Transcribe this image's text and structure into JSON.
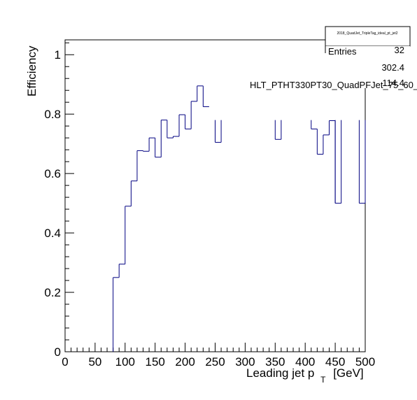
{
  "chart_data": {
    "type": "line",
    "step": true,
    "xlabel_main": "Leading jet p",
    "xlabel_sub": "T",
    "xlabel_unit": "[GeV]",
    "ylabel": "Efficiency",
    "xlim": [
      0,
      500
    ],
    "ylim": [
      0,
      1.05
    ],
    "x_ticks": [
      "0",
      "50",
      "100",
      "150",
      "200",
      "250",
      "300",
      "350",
      "400",
      "450",
      "500"
    ],
    "y_ticks": [
      "0",
      "0.2",
      "0.4",
      "0.6",
      "0.8",
      "1"
    ],
    "line_color": "#000080",
    "bin_width": 10,
    "bins": [
      {
        "x0": 80,
        "y": 0.25
      },
      {
        "x0": 90,
        "y": 0.295
      },
      {
        "x0": 100,
        "y": 0.49
      },
      {
        "x0": 110,
        "y": 0.575
      },
      {
        "x0": 120,
        "y": 0.677
      },
      {
        "x0": 130,
        "y": 0.675
      },
      {
        "x0": 140,
        "y": 0.72
      },
      {
        "x0": 150,
        "y": 0.655
      },
      {
        "x0": 160,
        "y": 0.78
      },
      {
        "x0": 170,
        "y": 0.72
      },
      {
        "x0": 180,
        "y": 0.725
      },
      {
        "x0": 190,
        "y": 0.798
      },
      {
        "x0": 200,
        "y": 0.75
      },
      {
        "x0": 210,
        "y": 0.843
      },
      {
        "x0": 220,
        "y": 0.895
      },
      {
        "x0": 230,
        "y": 0.825
      },
      {
        "x0": 250,
        "y": 0.705
      },
      {
        "x0": 350,
        "y": 0.715
      },
      {
        "x0": 410,
        "y": 0.75
      },
      {
        "x0": 420,
        "y": 0.665
      },
      {
        "x0": 430,
        "y": 0.73
      },
      {
        "x0": 440,
        "y": 0.778
      },
      {
        "x0": 450,
        "y": 0.5
      },
      {
        "x0": 490,
        "y": 0.5
      }
    ],
    "clipped_segments": [
      {
        "x0": 260,
        "x1": 260,
        "y0": 0.705,
        "y1": 0.78
      },
      {
        "x0": 250,
        "x1": 250,
        "y0": 0.705,
        "y1": 0.78
      },
      {
        "x0": 350,
        "x1": 350,
        "y0": 0.715,
        "y1": 0.78
      },
      {
        "x0": 360,
        "x1": 360,
        "y0": 0.715,
        "y1": 0.78
      },
      {
        "x0": 410,
        "x1": 410,
        "y0": 0.75,
        "y1": 0.78
      },
      {
        "x0": 450,
        "x1": 450,
        "y0": 0.5,
        "y1": 0.78
      },
      {
        "x0": 460,
        "x1": 460,
        "y0": 0.5,
        "y1": 0.78
      },
      {
        "x0": 490,
        "x1": 490,
        "y0": 0.5,
        "y1": 0.78
      }
    ]
  },
  "stats_box": {
    "title": "2018_QuadJet_TripleTag_ideal_pt_jet2",
    "row1_label": "Entries",
    "row1_value": "32",
    "row2_value": "302.4",
    "row3_value": "114.4"
  },
  "overlay_label": "HLT_PTHT330PT30_QuadPFJet_75_60_"
}
